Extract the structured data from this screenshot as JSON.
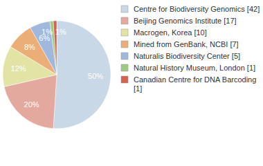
{
  "chart_data": {
    "type": "pie",
    "categories": [
      "Centre for Biodiversity Genomics [42]",
      "Beijing Genomics Institute [17]",
      "Macrogen, Korea [10]",
      "Mined from GenBank, NCBI [7]",
      "Naturalis Biodiversity Center [5]",
      "Natural History Museum, London [1]",
      "Canadian Centre for DNA Barcoding [1]"
    ],
    "values": [
      50,
      20,
      12,
      8,
      6,
      1,
      1
    ],
    "value_labels": [
      "50%",
      "20%",
      "12%",
      "8%",
      "6%",
      "1%",
      "1%"
    ],
    "colors": [
      "#c9d8e6",
      "#e3a99f",
      "#e2e4a5",
      "#ebae78",
      "#9fb8dc",
      "#9fc984",
      "#d2634f"
    ],
    "data_labels": true,
    "legend": "right"
  }
}
